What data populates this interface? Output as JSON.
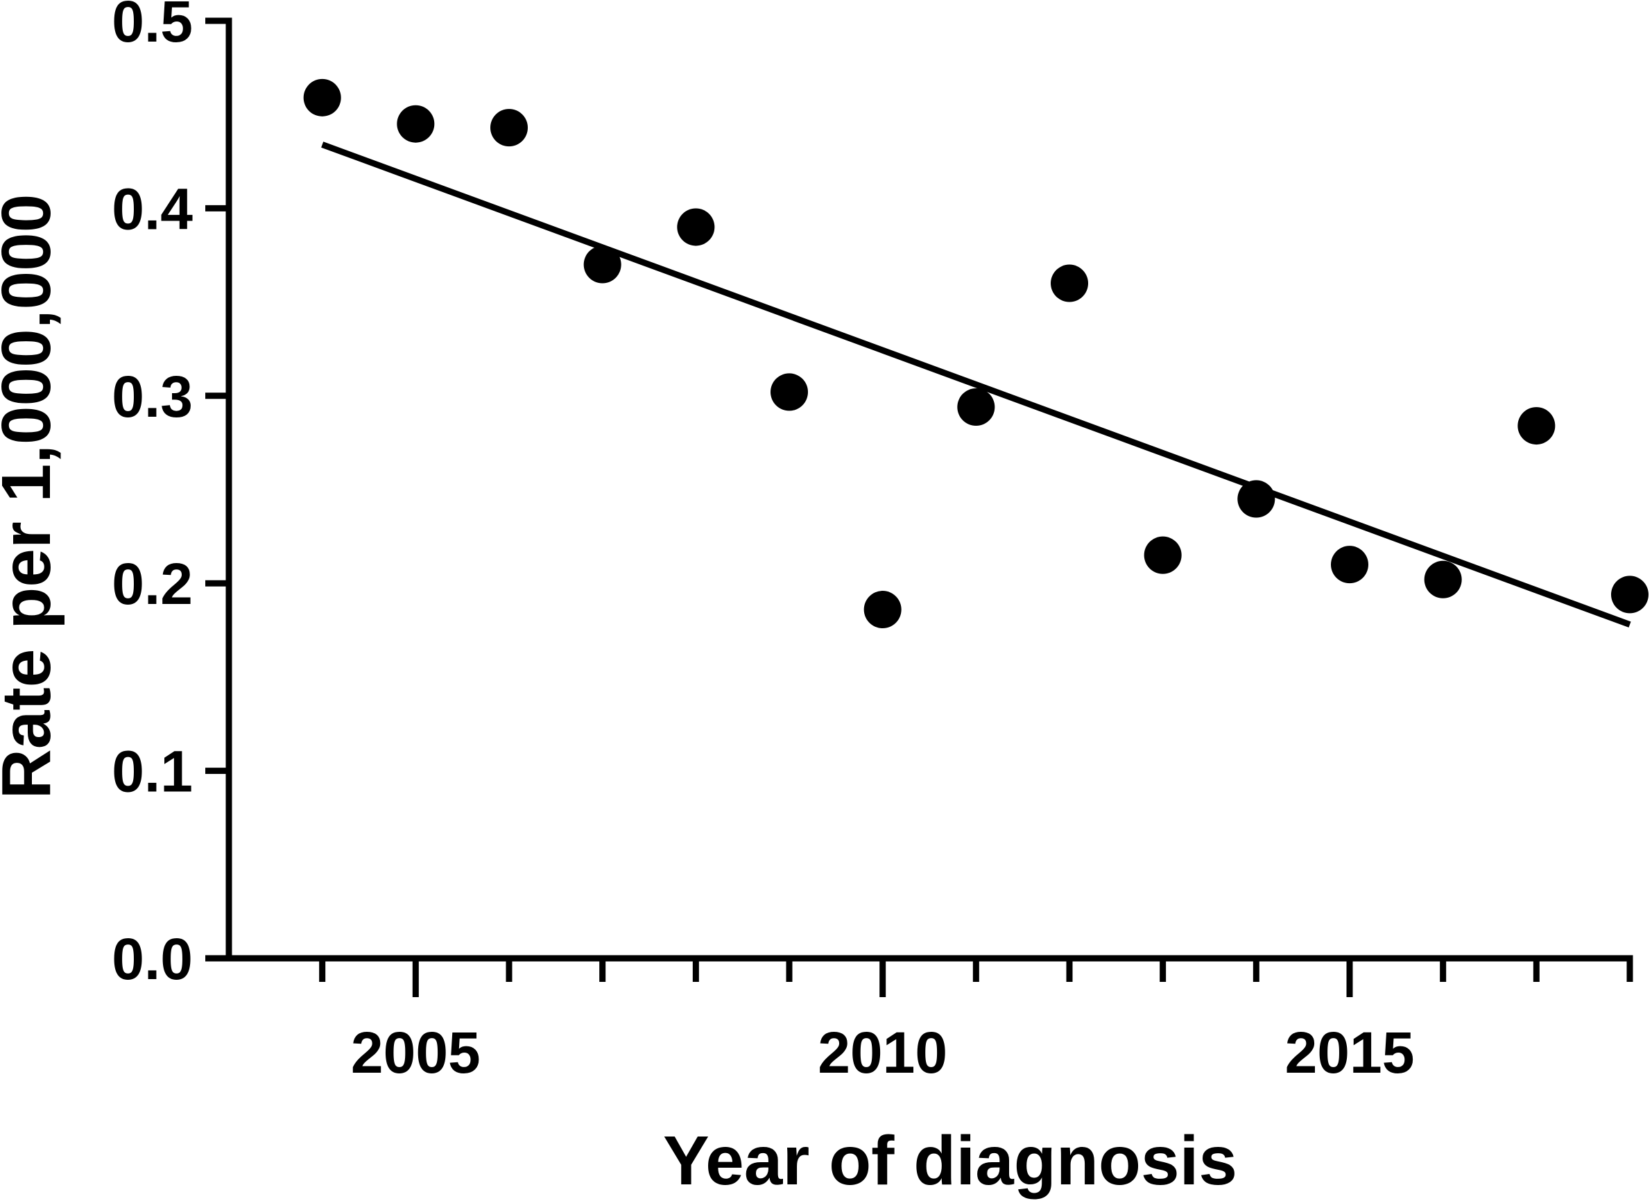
{
  "chart_data": {
    "type": "scatter",
    "xlabel": "Year of diagnosis",
    "ylabel": "Rate per 1,000,000",
    "xlim": [
      2003,
      2018
    ],
    "ylim": [
      0,
      0.5
    ],
    "x_ticks_major": [
      2005,
      2010,
      2015
    ],
    "x_ticks_minor": [
      2004,
      2006,
      2007,
      2008,
      2009,
      2011,
      2012,
      2013,
      2014,
      2016,
      2017,
      2018
    ],
    "x_tick_labels": [
      "2005",
      "2010",
      "2015"
    ],
    "y_ticks": [
      0.0,
      0.1,
      0.2,
      0.3,
      0.4,
      0.5
    ],
    "y_tick_labels": [
      "0.0",
      "0.1",
      "0.2",
      "0.3",
      "0.4",
      "0.5"
    ],
    "grid": false,
    "legend": "none",
    "series": [
      {
        "x": [
          2004,
          2005,
          2006,
          2007,
          2008,
          2009,
          2010,
          2011,
          2012,
          2013,
          2014,
          2015,
          2016,
          2017,
          2018
        ],
        "y": [
          0.459,
          0.445,
          0.443,
          0.37,
          0.39,
          0.302,
          0.186,
          0.294,
          0.36,
          0.215,
          0.245,
          0.21,
          0.202,
          0.284,
          0.194
        ],
        "color": "#000000"
      }
    ],
    "trendline": {
      "type": "linear",
      "x": [
        2004,
        2018
      ],
      "y": [
        0.434,
        0.178
      ],
      "color": "#000000"
    }
  }
}
